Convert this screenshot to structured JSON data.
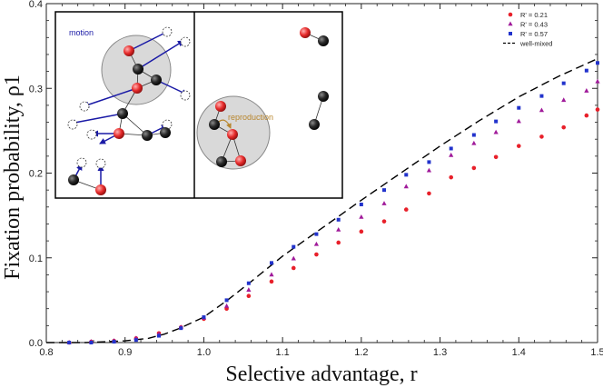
{
  "chart_data": {
    "type": "scatter",
    "title": "",
    "xlabel": "Selective advantage, r",
    "ylabel": "Fixation probability, ρ1",
    "xlim": [
      0.8,
      1.5
    ],
    "ylim": [
      0,
      0.4
    ],
    "xticks": [
      "0.8",
      "0.9",
      "1.0",
      "1.1",
      "1.2",
      "1.3",
      "1.4",
      "1.5"
    ],
    "yticks": [
      "0.0",
      "0.1",
      "0.2",
      "0.3",
      "0.4"
    ],
    "grid": false,
    "legend_position": "top-right",
    "series": [
      {
        "name": "R' = 0.21",
        "marker": "circle",
        "color": "#e8202a",
        "points": [
          [
            0.829,
            0.0
          ],
          [
            0.857,
            0.001
          ],
          [
            0.886,
            0.002
          ],
          [
            0.914,
            0.005
          ],
          [
            0.943,
            0.011
          ],
          [
            0.971,
            0.018
          ],
          [
            1.0,
            0.028
          ],
          [
            1.029,
            0.04
          ],
          [
            1.057,
            0.055
          ],
          [
            1.086,
            0.072
          ],
          [
            1.114,
            0.088
          ],
          [
            1.143,
            0.104
          ],
          [
            1.171,
            0.118
          ],
          [
            1.2,
            0.131
          ],
          [
            1.229,
            0.143
          ],
          [
            1.257,
            0.157
          ],
          [
            1.286,
            0.176
          ],
          [
            1.314,
            0.195
          ],
          [
            1.343,
            0.206
          ],
          [
            1.371,
            0.219
          ],
          [
            1.4,
            0.232
          ],
          [
            1.429,
            0.243
          ],
          [
            1.457,
            0.254
          ],
          [
            1.486,
            0.268
          ],
          [
            1.5,
            0.275
          ]
        ]
      },
      {
        "name": "R' = 0.43",
        "marker": "triangle",
        "color": "#a01a9a",
        "points": [
          [
            0.829,
            0.0
          ],
          [
            0.857,
            0.001
          ],
          [
            0.886,
            0.002
          ],
          [
            0.914,
            0.005
          ],
          [
            0.943,
            0.01
          ],
          [
            0.971,
            0.018
          ],
          [
            1.0,
            0.029
          ],
          [
            1.029,
            0.043
          ],
          [
            1.057,
            0.062
          ],
          [
            1.086,
            0.08
          ],
          [
            1.114,
            0.099
          ],
          [
            1.143,
            0.116
          ],
          [
            1.171,
            0.133
          ],
          [
            1.2,
            0.148
          ],
          [
            1.229,
            0.164
          ],
          [
            1.257,
            0.184
          ],
          [
            1.286,
            0.203
          ],
          [
            1.314,
            0.221
          ],
          [
            1.343,
            0.235
          ],
          [
            1.371,
            0.248
          ],
          [
            1.4,
            0.261
          ],
          [
            1.429,
            0.274
          ],
          [
            1.457,
            0.286
          ],
          [
            1.486,
            0.297
          ],
          [
            1.5,
            0.308
          ]
        ]
      },
      {
        "name": "R' = 0.57",
        "marker": "square",
        "color": "#2233cc",
        "points": [
          [
            0.829,
            0.0
          ],
          [
            0.857,
            0.0
          ],
          [
            0.886,
            0.001
          ],
          [
            0.914,
            0.003
          ],
          [
            0.943,
            0.008
          ],
          [
            0.971,
            0.017
          ],
          [
            1.0,
            0.03
          ],
          [
            1.029,
            0.05
          ],
          [
            1.057,
            0.07
          ],
          [
            1.086,
            0.094
          ],
          [
            1.114,
            0.113
          ],
          [
            1.143,
            0.128
          ],
          [
            1.171,
            0.145
          ],
          [
            1.2,
            0.163
          ],
          [
            1.229,
            0.18
          ],
          [
            1.257,
            0.198
          ],
          [
            1.286,
            0.213
          ],
          [
            1.314,
            0.229
          ],
          [
            1.343,
            0.245
          ],
          [
            1.371,
            0.261
          ],
          [
            1.4,
            0.277
          ],
          [
            1.429,
            0.291
          ],
          [
            1.457,
            0.306
          ],
          [
            1.486,
            0.321
          ],
          [
            1.5,
            0.33
          ]
        ]
      },
      {
        "name": "well-mixed",
        "line": "dashed",
        "color": "#000000",
        "points": [
          [
            0.8,
            0.0
          ],
          [
            0.85,
            0.0
          ],
          [
            0.9,
            0.002
          ],
          [
            0.93,
            0.005
          ],
          [
            0.95,
            0.01
          ],
          [
            0.97,
            0.017
          ],
          [
            1.0,
            0.03
          ],
          [
            1.03,
            0.05
          ],
          [
            1.06,
            0.072
          ],
          [
            1.1,
            0.102
          ],
          [
            1.15,
            0.135
          ],
          [
            1.2,
            0.168
          ],
          [
            1.25,
            0.2
          ],
          [
            1.3,
            0.232
          ],
          [
            1.35,
            0.262
          ],
          [
            1.4,
            0.29
          ],
          [
            1.45,
            0.314
          ],
          [
            1.5,
            0.335
          ]
        ]
      }
    ]
  },
  "inset": {
    "label_motion": "motion",
    "label_reproduction": "reproduction",
    "colors": {
      "motion": "#1a1aa6",
      "reproduction": "#b8862e"
    }
  }
}
